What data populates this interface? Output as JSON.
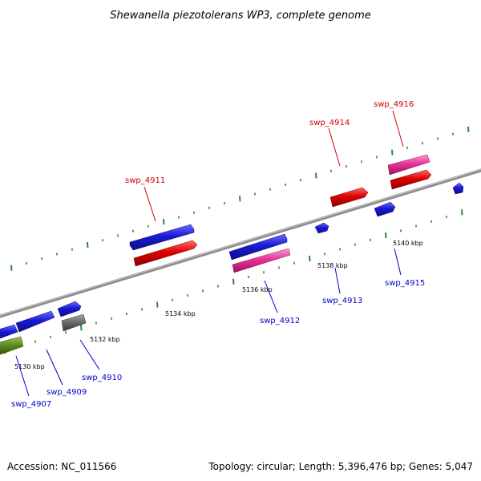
{
  "title": "Shewanella piezotolerans WP3, complete genome",
  "footer": {
    "accession": "Accession: NC_011566",
    "summary": "Topology: circular; Length: 5,396,476 bp; Genes: 5,047"
  },
  "scale_labels": [
    "5130 kbp",
    "5132 kbp",
    "5134 kbp",
    "5136 kbp",
    "5138 kbp",
    "5140 kbp"
  ],
  "gene_labels": [
    {
      "id": "swp_4911",
      "strand": "forward"
    },
    {
      "id": "swp_4914",
      "strand": "forward"
    },
    {
      "id": "swp_4916",
      "strand": "forward"
    },
    {
      "id": "swp_4907",
      "strand": "reverse"
    },
    {
      "id": "swp_4909",
      "strand": "reverse"
    },
    {
      "id": "swp_4910",
      "strand": "reverse"
    },
    {
      "id": "swp_4912",
      "strand": "reverse"
    },
    {
      "id": "swp_4913",
      "strand": "reverse"
    },
    {
      "id": "swp_4915",
      "strand": "reverse"
    }
  ],
  "colors": {
    "forward_label": "#cc0000",
    "reverse_label": "#0000cc",
    "backbone": "#808080",
    "tick": "#2e8b2e",
    "blue_gene": "#1a1ad6",
    "red_gene": "#e00000",
    "pink_gene": "#e8339a",
    "gray_gene": "#6e6e6e",
    "green_gene": "#5a8a1f"
  }
}
